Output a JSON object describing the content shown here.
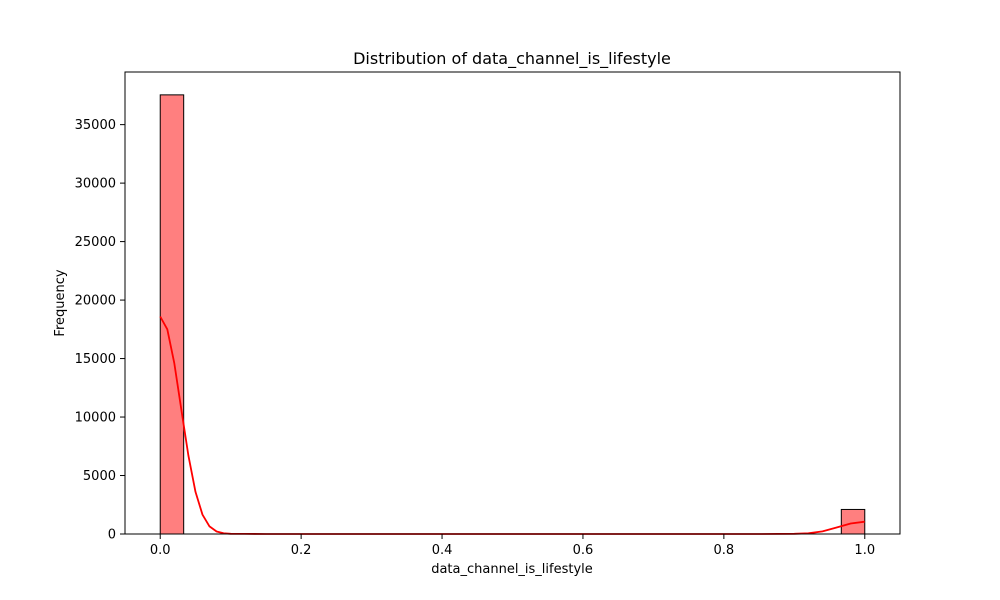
{
  "chart_data": {
    "type": "bar",
    "title": "Distribution of  data_channel_is_lifestyle",
    "xlabel": "data_channel_is_lifestyle",
    "ylabel": "Frequency",
    "xlim": [
      -0.05,
      1.05
    ],
    "ylim": [
      0,
      39500
    ],
    "x_ticks": [
      0.0,
      0.2,
      0.4,
      0.6,
      0.8,
      1.0
    ],
    "x_tick_labels": [
      "0.0",
      "0.2",
      "0.4",
      "0.6",
      "0.8",
      "1.0"
    ],
    "y_ticks": [
      0,
      5000,
      10000,
      15000,
      20000,
      25000,
      30000,
      35000
    ],
    "y_tick_labels": [
      "0",
      "5000",
      "10000",
      "15000",
      "20000",
      "25000",
      "30000",
      "35000"
    ],
    "bins": [
      {
        "x0": 0.0,
        "x1": 0.0333,
        "count": 37545
      },
      {
        "x0": 0.9667,
        "x1": 1.0,
        "count": 2099
      }
    ],
    "kde": {
      "x": [
        0.0,
        0.01,
        0.02,
        0.03,
        0.04,
        0.05,
        0.06,
        0.07,
        0.08,
        0.09,
        0.1,
        0.12,
        0.15,
        0.2,
        0.3,
        0.5,
        0.7,
        0.85,
        0.9,
        0.92,
        0.94,
        0.96,
        0.98,
        1.0
      ],
      "y": [
        18600,
        17500,
        14600,
        10600,
        6700,
        3600,
        1650,
        650,
        210,
        60,
        20,
        5,
        0,
        0,
        0,
        0,
        0,
        0,
        15,
        60,
        220,
        560,
        900,
        1050
      ]
    },
    "bar_color": "#ff7f7f",
    "bar_edge_color": "#000000",
    "kde_color": "#ff0000",
    "grid": false,
    "legend": false
  }
}
